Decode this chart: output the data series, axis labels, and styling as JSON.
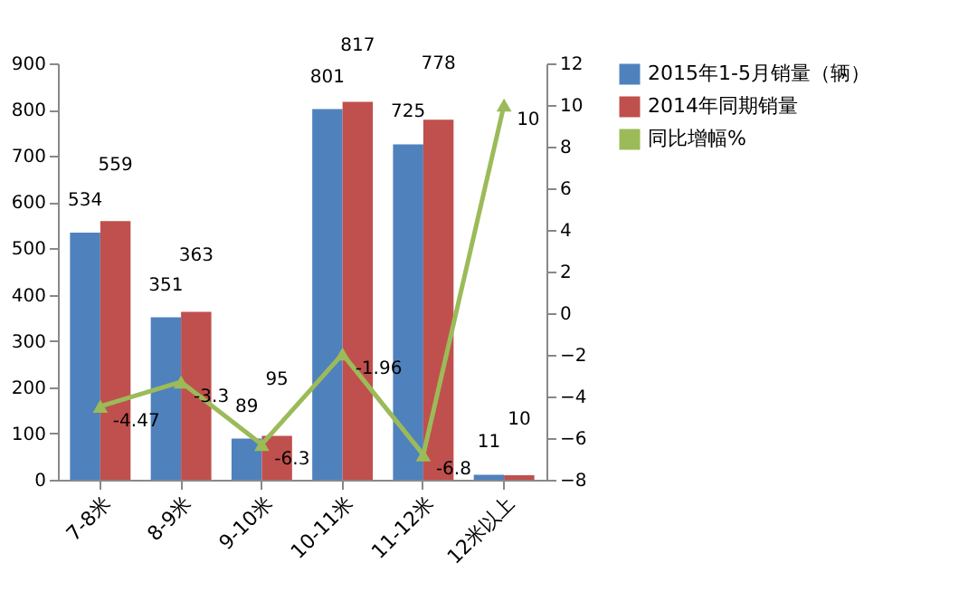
{
  "chart_data": {
    "type": "bar",
    "categories": [
      "7-8米",
      "8-9米",
      "9-10米",
      "10-11米",
      "11-12米",
      "12米以上"
    ],
    "series": [
      {
        "name": "2015年1-5月销量（辆）",
        "color": "#4f81bd",
        "values": [
          534,
          351,
          89,
          801,
          725,
          11
        ]
      },
      {
        "name": "2014年同期销量",
        "color": "#c0504d",
        "values": [
          559,
          363,
          95,
          817,
          778,
          10
        ]
      },
      {
        "name": "同比增幅%",
        "type": "line",
        "axis": "y2",
        "color": "#9bbb59",
        "values": [
          -4.47,
          -3.3,
          -6.3,
          -1.96,
          -6.8,
          10
        ]
      }
    ],
    "ylim": [
      0,
      900
    ],
    "yticks": [
      0,
      100,
      200,
      300,
      400,
      500,
      600,
      700,
      800,
      900
    ],
    "y2lim": [
      -8,
      12
    ],
    "y2ticks": [
      -8,
      -6,
      -4,
      -2,
      0,
      2,
      4,
      6,
      8,
      10,
      12
    ],
    "data_labels": true,
    "legend": "right",
    "marker": "triangle"
  }
}
